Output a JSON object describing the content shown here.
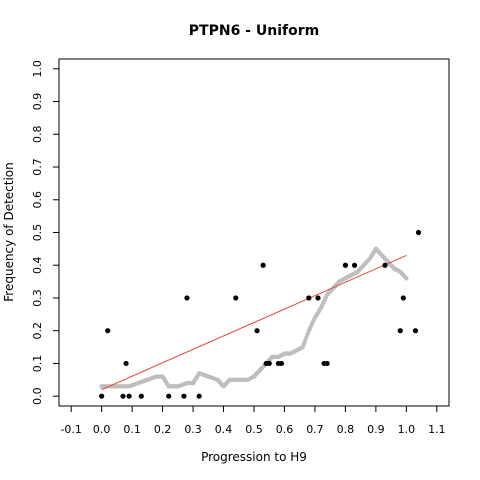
{
  "chart_data": {
    "type": "scatter",
    "title": "PTPN6 - Uniform",
    "xlabel": "Progression to H9",
    "ylabel": "Frequency of Detection",
    "xlim": [
      -0.14,
      1.14
    ],
    "ylim": [
      -0.03,
      1.03
    ],
    "x_ticks": [
      -0.1,
      0.0,
      0.1,
      0.2,
      0.3,
      0.4,
      0.5,
      0.6,
      0.7,
      0.8,
      0.9,
      1.0,
      1.1
    ],
    "x_tick_labels": [
      "-0.1",
      "0.0",
      "0.1",
      "0.2",
      "0.3",
      "0.4",
      "0.5",
      "0.6",
      "0.7",
      "0.8",
      "0.9",
      "1.0",
      "1.1"
    ],
    "y_ticks": [
      0.0,
      0.1,
      0.2,
      0.3,
      0.4,
      0.5,
      0.6,
      0.7,
      0.8,
      0.9,
      1.0
    ],
    "y_tick_labels": [
      "0.0",
      "0.1",
      "0.2",
      "0.3",
      "0.4",
      "0.5",
      "0.6",
      "0.7",
      "0.8",
      "0.9",
      "1.0"
    ],
    "grid": false,
    "series": [
      {
        "kind": "points",
        "color": "#000000",
        "x": [
          0.0,
          0.02,
          0.07,
          0.08,
          0.09,
          0.13,
          0.22,
          0.27,
          0.28,
          0.32,
          0.44,
          0.51,
          0.53,
          0.54,
          0.55,
          0.58,
          0.59,
          0.68,
          0.71,
          0.73,
          0.74,
          0.8,
          0.83,
          0.93,
          0.98,
          0.99,
          1.03,
          1.04
        ],
        "y": [
          0.0,
          0.2,
          0.0,
          0.1,
          0.0,
          0.0,
          0.0,
          0.0,
          0.3,
          0.0,
          0.3,
          0.2,
          0.4,
          0.1,
          0.1,
          0.1,
          0.1,
          0.3,
          0.3,
          0.1,
          0.1,
          0.4,
          0.4,
          0.4,
          0.2,
          0.3,
          0.2,
          0.5
        ]
      },
      {
        "kind": "smoothed",
        "color": "#bebebe",
        "x": [
          0.0,
          0.03,
          0.06,
          0.09,
          0.12,
          0.15,
          0.18,
          0.2,
          0.22,
          0.25,
          0.28,
          0.3,
          0.32,
          0.35,
          0.38,
          0.4,
          0.42,
          0.45,
          0.48,
          0.5,
          0.52,
          0.54,
          0.56,
          0.58,
          0.6,
          0.62,
          0.64,
          0.66,
          0.68,
          0.7,
          0.72,
          0.74,
          0.76,
          0.78,
          0.8,
          0.82,
          0.84,
          0.86,
          0.88,
          0.9,
          0.92,
          0.94,
          0.96,
          0.98,
          1.0
        ],
        "y": [
          0.03,
          0.03,
          0.03,
          0.03,
          0.04,
          0.05,
          0.06,
          0.06,
          0.03,
          0.03,
          0.04,
          0.04,
          0.07,
          0.06,
          0.05,
          0.03,
          0.05,
          0.05,
          0.05,
          0.06,
          0.08,
          0.1,
          0.12,
          0.12,
          0.13,
          0.13,
          0.14,
          0.15,
          0.2,
          0.24,
          0.27,
          0.31,
          0.33,
          0.35,
          0.36,
          0.37,
          0.38,
          0.4,
          0.42,
          0.45,
          0.43,
          0.41,
          0.39,
          0.38,
          0.36
        ]
      },
      {
        "kind": "fit-line",
        "color": "#e34a33",
        "x": [
          0.0,
          1.0
        ],
        "y": [
          0.02,
          0.43
        ]
      }
    ]
  }
}
